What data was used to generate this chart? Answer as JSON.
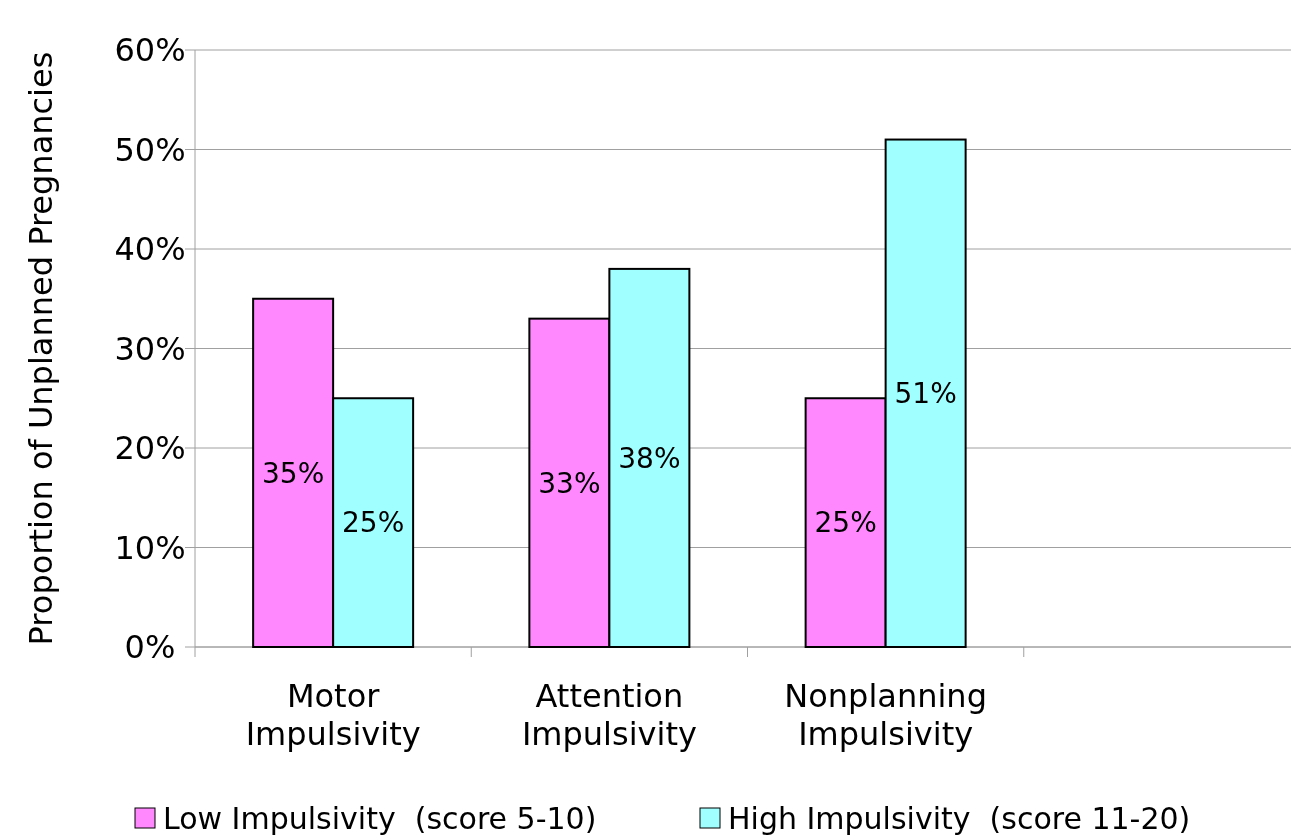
{
  "chart_data": {
    "type": "bar",
    "ylabel": "Proportion of Unplanned Pregnancies",
    "categories": [
      "Motor\nImpulsivity",
      "Attention\nImpulsivity",
      "Nonplanning\nImpulsivity",
      null
    ],
    "series": [
      {
        "name": "Low Impulsivity  (score 5-10)",
        "color": "#ff88ff",
        "values": [
          35,
          33,
          25,
          null
        ],
        "value_labels": [
          "35%",
          "33%",
          "25%",
          null
        ]
      },
      {
        "name": "High Impulsivity  (score 11-20)",
        "color": "#a0ffff",
        "values": [
          25,
          38,
          51,
          null
        ],
        "value_labels": [
          "25%",
          "38%",
          "51%",
          null
        ]
      }
    ],
    "ylim": [
      0,
      60
    ],
    "yticks": [
      {
        "value": 0,
        "label": "0%"
      },
      {
        "value": 10,
        "label": "10%"
      },
      {
        "value": 20,
        "label": "20%"
      },
      {
        "value": 30,
        "label": "30%"
      },
      {
        "value": 40,
        "label": "40%"
      },
      {
        "value": 50,
        "label": "50%"
      },
      {
        "value": 60,
        "label": "60%"
      }
    ],
    "grid": "y",
    "legend": "bottom"
  }
}
